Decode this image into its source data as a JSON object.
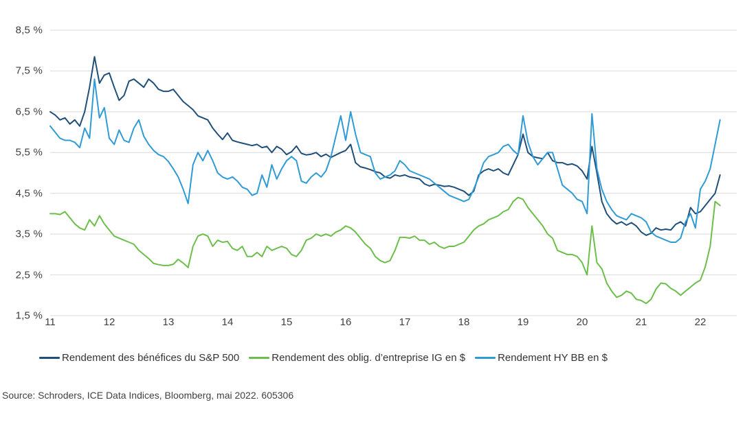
{
  "colors": {
    "grid": "#d9d9d9",
    "axis_text": "#3f3f3f",
    "navy": "#1f4e79",
    "green": "#6cbe4b",
    "blue": "#2e9bd6"
  },
  "source_note": "Source: Schroders, ICE Data Indices, Bloomberg, mai 2022. 605306",
  "chart_data": {
    "type": "line",
    "title": "",
    "grid": "horizontal",
    "legend_position": "bottom",
    "x_axis": {
      "tick_labels": [
        "11",
        "12",
        "13",
        "14",
        "15",
        "16",
        "17",
        "18",
        "19",
        "20",
        "21",
        "22"
      ],
      "description": "Years 2011 to 2022, monthly data from January 2011 to May 2022"
    },
    "y_axis": {
      "min": 1.5,
      "max": 8.5,
      "step": 1.0,
      "unit": "%",
      "tick_labels": [
        "8,5 %",
        "7,5 %",
        "6,5 %",
        "5,5 %",
        "4,5 %",
        "3,5 %",
        "2,5 %",
        "1,5 %"
      ]
    },
    "series": [
      {
        "name": "Rendement des bénéfices du S&P 500",
        "color": "#1f4e79",
        "values": [
          6.5,
          6.42,
          6.3,
          6.35,
          6.2,
          6.3,
          6.15,
          6.5,
          7.1,
          7.85,
          7.2,
          7.4,
          7.45,
          7.1,
          6.78,
          6.9,
          7.25,
          7.3,
          7.2,
          7.1,
          7.3,
          7.2,
          7.05,
          7.0,
          7.0,
          7.05,
          6.9,
          6.75,
          6.65,
          6.55,
          6.4,
          6.35,
          6.3,
          6.1,
          5.95,
          5.82,
          5.98,
          5.8,
          5.76,
          5.73,
          5.7,
          5.67,
          5.7,
          5.62,
          5.65,
          5.5,
          5.65,
          5.58,
          5.45,
          5.52,
          5.66,
          5.48,
          5.44,
          5.46,
          5.5,
          5.4,
          5.46,
          5.38,
          5.44,
          5.5,
          5.55,
          5.7,
          5.25,
          5.15,
          5.12,
          5.08,
          5.03,
          5.0,
          4.9,
          4.87,
          4.95,
          4.92,
          4.95,
          4.9,
          4.88,
          4.85,
          4.73,
          4.68,
          4.72,
          4.7,
          4.67,
          4.68,
          4.65,
          4.6,
          4.55,
          4.45,
          4.55,
          4.95,
          5.05,
          5.1,
          5.05,
          5.1,
          5.0,
          4.95,
          5.2,
          5.45,
          5.95,
          5.5,
          5.4,
          5.37,
          5.35,
          5.5,
          5.3,
          5.25,
          5.25,
          5.2,
          5.22,
          5.17,
          5.05,
          4.85,
          5.65,
          5.0,
          4.3,
          4.0,
          3.85,
          3.75,
          3.8,
          3.72,
          3.78,
          3.7,
          3.55,
          3.47,
          3.52,
          3.65,
          3.6,
          3.62,
          3.6,
          3.74,
          3.8,
          3.7,
          4.15,
          4.0,
          4.05,
          4.2,
          4.35,
          4.5,
          4.95
        ]
      },
      {
        "name": "Rendement des oblig. d’entreprise IG en $",
        "color": "#6cbe4b",
        "values": [
          4.0,
          4.0,
          3.98,
          4.05,
          3.9,
          3.75,
          3.65,
          3.6,
          3.85,
          3.7,
          3.95,
          3.75,
          3.6,
          3.45,
          3.4,
          3.35,
          3.3,
          3.25,
          3.1,
          3.0,
          2.9,
          2.78,
          2.75,
          2.73,
          2.73,
          2.76,
          2.88,
          2.79,
          2.68,
          3.2,
          3.45,
          3.5,
          3.45,
          3.2,
          3.35,
          3.3,
          3.32,
          3.15,
          3.1,
          3.2,
          2.95,
          2.95,
          3.05,
          2.95,
          3.2,
          3.1,
          3.15,
          3.2,
          3.15,
          3.0,
          2.95,
          3.1,
          3.35,
          3.4,
          3.5,
          3.45,
          3.5,
          3.45,
          3.55,
          3.6,
          3.7,
          3.65,
          3.55,
          3.4,
          3.25,
          3.15,
          2.95,
          2.85,
          2.8,
          2.85,
          3.1,
          3.42,
          3.42,
          3.4,
          3.45,
          3.35,
          3.35,
          3.25,
          3.3,
          3.2,
          3.15,
          3.2,
          3.2,
          3.25,
          3.3,
          3.45,
          3.6,
          3.7,
          3.75,
          3.85,
          3.9,
          3.95,
          4.05,
          4.1,
          4.3,
          4.4,
          4.35,
          4.15,
          4.0,
          3.85,
          3.7,
          3.5,
          3.4,
          3.1,
          3.05,
          3.0,
          3.0,
          2.95,
          2.8,
          2.5,
          3.7,
          2.8,
          2.65,
          2.3,
          2.1,
          1.95,
          2.0,
          2.1,
          2.05,
          1.9,
          1.87,
          1.8,
          1.9,
          2.15,
          2.3,
          2.28,
          2.17,
          2.1,
          2.0,
          2.1,
          2.2,
          2.3,
          2.37,
          2.7,
          3.2,
          4.3,
          4.2
        ]
      },
      {
        "name": "Rendement HY BB en $",
        "color": "#2e9bd6",
        "values": [
          6.15,
          6.0,
          5.85,
          5.8,
          5.8,
          5.75,
          5.62,
          6.1,
          5.85,
          7.3,
          6.35,
          6.6,
          5.85,
          5.7,
          6.05,
          5.8,
          5.75,
          6.1,
          6.3,
          5.9,
          5.7,
          5.55,
          5.45,
          5.4,
          5.28,
          5.1,
          4.9,
          4.6,
          4.25,
          5.2,
          5.5,
          5.3,
          5.55,
          5.3,
          5.0,
          4.9,
          4.85,
          4.9,
          4.8,
          4.65,
          4.6,
          4.45,
          4.5,
          4.95,
          4.65,
          5.2,
          4.85,
          5.1,
          5.3,
          5.4,
          5.3,
          4.8,
          4.75,
          4.9,
          5.0,
          4.9,
          5.05,
          5.4,
          5.9,
          6.4,
          5.8,
          6.5,
          5.95,
          5.5,
          5.45,
          5.4,
          5.0,
          4.85,
          4.9,
          4.95,
          5.05,
          5.3,
          5.2,
          5.05,
          5.0,
          4.95,
          4.9,
          4.85,
          4.75,
          4.65,
          4.55,
          4.45,
          4.4,
          4.35,
          4.3,
          4.35,
          4.6,
          4.9,
          5.25,
          5.4,
          5.45,
          5.5,
          5.65,
          5.7,
          5.55,
          5.45,
          6.4,
          5.75,
          5.4,
          5.2,
          5.35,
          5.5,
          5.5,
          5.1,
          4.7,
          4.6,
          4.5,
          4.35,
          4.3,
          4.0,
          6.45,
          5.1,
          4.6,
          4.3,
          4.1,
          3.95,
          3.9,
          3.85,
          4.0,
          3.95,
          3.9,
          3.8,
          3.55,
          3.45,
          3.4,
          3.35,
          3.3,
          3.3,
          3.4,
          3.8,
          4.0,
          3.65,
          4.6,
          4.8,
          5.1,
          5.7,
          6.3
        ]
      }
    ]
  }
}
